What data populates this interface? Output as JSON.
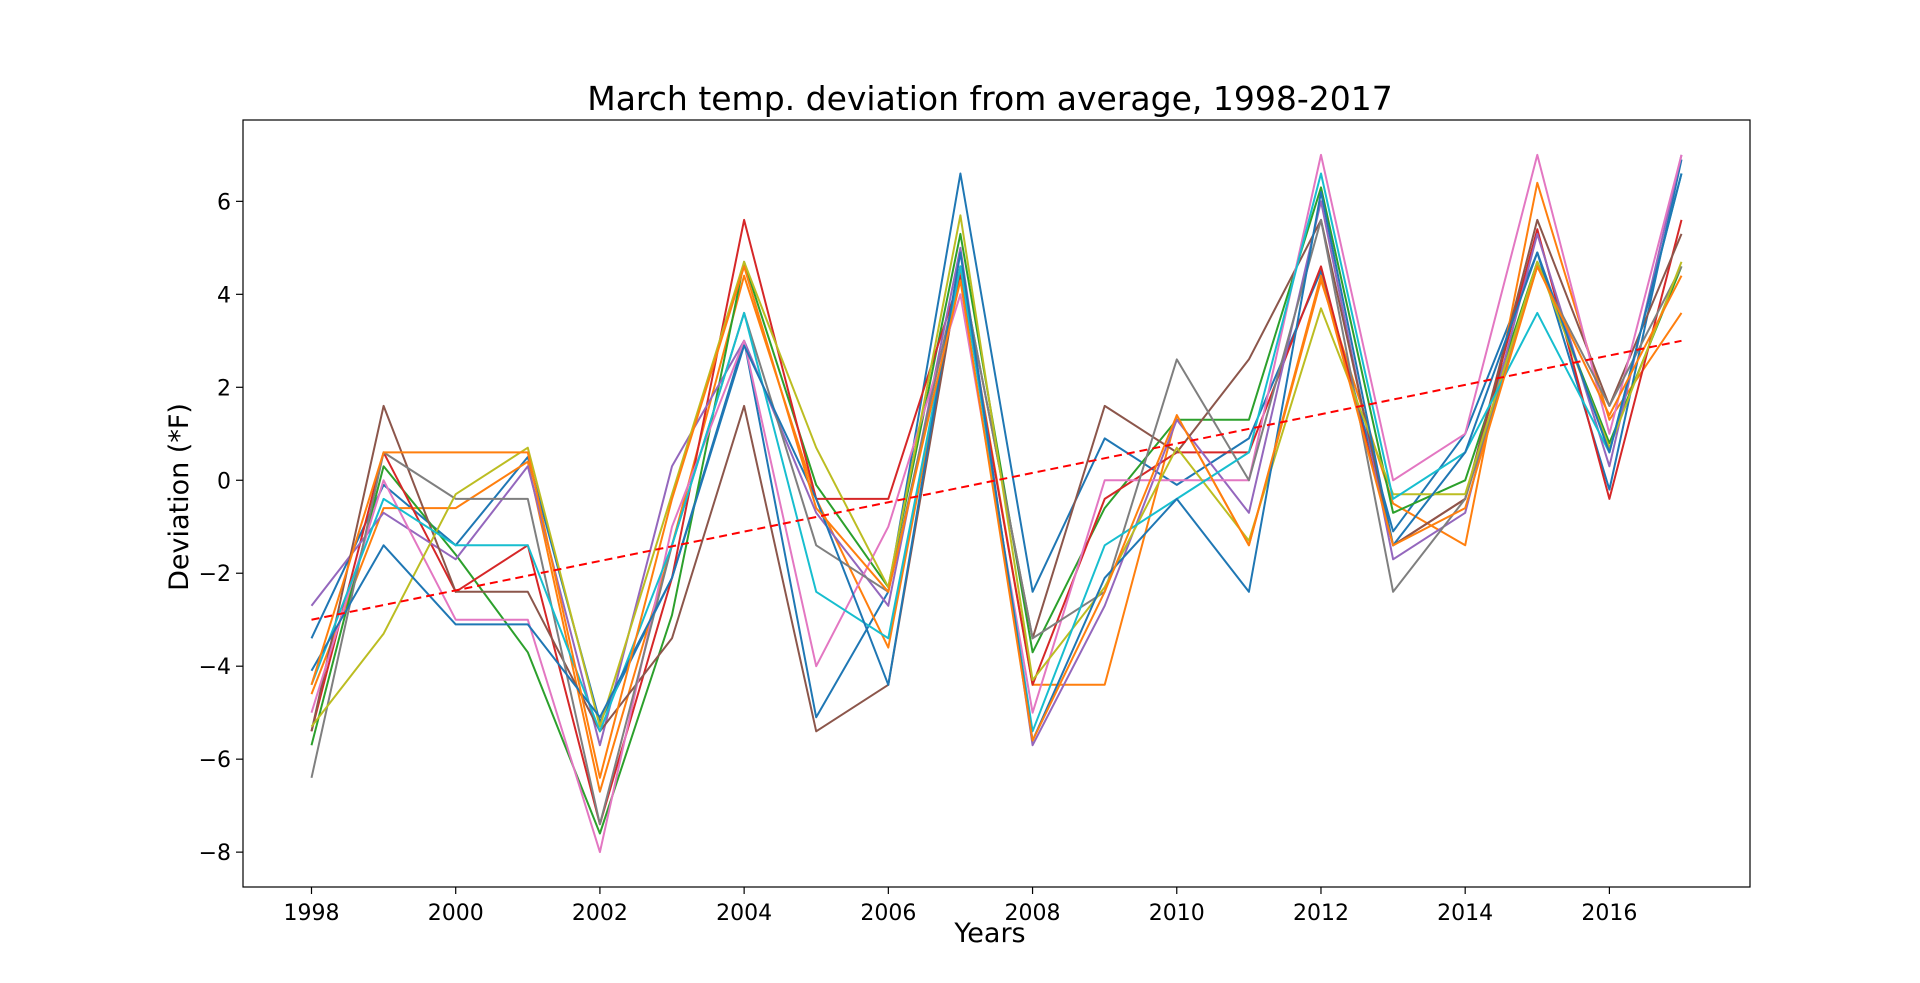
{
  "chart_data": {
    "type": "line",
    "title": "March temp. deviation from average, 1998-2017",
    "xlabel": "Years",
    "ylabel": "Deviation (*F)",
    "x": [
      1998,
      1999,
      2000,
      2001,
      2002,
      2003,
      2004,
      2005,
      2006,
      2007,
      2008,
      2009,
      2010,
      2011,
      2012,
      2013,
      2014,
      2015,
      2016,
      2017
    ],
    "xlim": [
      1997.05,
      2017.95
    ],
    "ylim": [
      -8.75,
      7.75
    ],
    "xticks": [
      1998,
      2000,
      2002,
      2004,
      2006,
      2008,
      2010,
      2012,
      2014,
      2016
    ],
    "xtick_labels": [
      "1998",
      "2000",
      "2002",
      "2004",
      "2006",
      "2008",
      "2010",
      "2012",
      "2014",
      "2016"
    ],
    "yticks": [
      -8,
      -6,
      -4,
      -2,
      0,
      2,
      4,
      6
    ],
    "ytick_labels": [
      "−8",
      "−6",
      "−4",
      "−2",
      "0",
      "2",
      "4",
      "6"
    ],
    "grid": false,
    "series": [
      {
        "color": "#1f77b4",
        "values": [
          -3.4,
          -0.1,
          -1.4,
          0.5,
          -5.2,
          -2.1,
          3.0,
          -5.1,
          -2.4,
          6.6,
          -2.4,
          0.9,
          -0.1,
          0.9,
          4.5,
          -1.1,
          1.0,
          4.9,
          -0.2,
          6.9
        ]
      },
      {
        "color": "#ff7f0e",
        "values": [
          -4.6,
          -0.6,
          -0.6,
          0.4,
          -6.7,
          -1.4,
          4.4,
          -0.4,
          -3.6,
          4.5,
          -4.4,
          -4.4,
          1.4,
          -1.4,
          4.3,
          -0.5,
          -1.4,
          6.4,
          1.3,
          3.6
        ]
      },
      {
        "color": "#2ca02c",
        "values": [
          -5.7,
          0.3,
          -1.6,
          -3.7,
          -7.6,
          -2.9,
          4.7,
          -0.1,
          -2.3,
          5.3,
          -3.7,
          -0.6,
          1.3,
          1.3,
          6.3,
          -0.7,
          0.0,
          4.7,
          0.8,
          4.6
        ]
      },
      {
        "color": "#d62728",
        "values": [
          -5.4,
          0.6,
          -2.4,
          -1.4,
          -7.4,
          -2.1,
          5.6,
          -0.4,
          -0.4,
          4.4,
          -4.4,
          -0.4,
          0.6,
          0.6,
          4.6,
          -1.4,
          -0.4,
          5.4,
          -0.4,
          5.6
        ]
      },
      {
        "color": "#9467bd",
        "values": [
          -2.7,
          -0.7,
          -1.7,
          0.3,
          -5.7,
          0.3,
          3.0,
          -0.7,
          -2.7,
          5.0,
          -5.7,
          -2.7,
          1.3,
          -0.7,
          6.0,
          -1.7,
          -0.7,
          5.3,
          0.3,
          7.0
        ]
      },
      {
        "color": "#8c564b",
        "values": [
          -5.4,
          1.6,
          -2.4,
          -2.4,
          -5.4,
          -3.4,
          1.6,
          -5.4,
          -4.4,
          4.6,
          -3.4,
          1.6,
          0.6,
          2.6,
          5.6,
          -1.4,
          -0.4,
          5.6,
          1.6,
          5.3
        ]
      },
      {
        "color": "#e377c2",
        "values": [
          -5.0,
          0.0,
          -3.0,
          -3.0,
          -8.0,
          -1.0,
          3.0,
          -4.0,
          -1.0,
          4.0,
          -5.0,
          0.0,
          0.0,
          0.0,
          7.0,
          0.0,
          1.0,
          7.0,
          1.0,
          7.0
        ]
      },
      {
        "color": "#7f7f7f",
        "values": [
          -6.4,
          0.6,
          -0.4,
          -0.4,
          -7.4,
          -1.4,
          3.6,
          -1.4,
          -2.4,
          4.6,
          -3.4,
          -2.4,
          2.6,
          0.0,
          5.6,
          -2.4,
          -0.4,
          4.6,
          1.6,
          4.6
        ]
      },
      {
        "color": "#bcbd22",
        "values": [
          -5.3,
          -3.3,
          -0.3,
          0.7,
          -5.3,
          -0.3,
          4.7,
          0.7,
          -2.3,
          5.7,
          -4.3,
          -2.3,
          0.7,
          -1.3,
          3.7,
          -0.3,
          -0.3,
          4.7,
          0.7,
          4.7
        ]
      },
      {
        "color": "#17becf",
        "values": [
          -4.4,
          -0.4,
          -1.4,
          -1.4,
          -5.4,
          -1.4,
          3.6,
          -2.4,
          -3.4,
          4.6,
          -5.4,
          -1.4,
          -0.4,
          0.6,
          6.6,
          -0.4,
          0.6,
          3.6,
          0.6,
          6.6
        ]
      },
      {
        "color": "#1f77b4",
        "values": [
          -4.1,
          -1.4,
          -3.1,
          -3.1,
          -5.1,
          -2.1,
          2.9,
          -0.4,
          -4.4,
          4.9,
          -5.6,
          -2.1,
          -0.4,
          -2.4,
          6.2,
          -1.4,
          0.6,
          4.9,
          0.6,
          6.6
        ]
      },
      {
        "color": "#ff7f0e",
        "values": [
          -4.4,
          0.6,
          0.6,
          0.6,
          -6.4,
          -0.4,
          4.6,
          -0.6,
          -2.4,
          4.3,
          -5.6,
          -2.4,
          1.4,
          -1.4,
          4.4,
          -1.4,
          -0.6,
          4.6,
          1.4,
          4.4
        ]
      }
    ],
    "trendline": {
      "color": "#ff0000",
      "style": "dashed",
      "start": [
        1998,
        -3.0
      ],
      "end": [
        2017,
        3.0
      ]
    }
  }
}
